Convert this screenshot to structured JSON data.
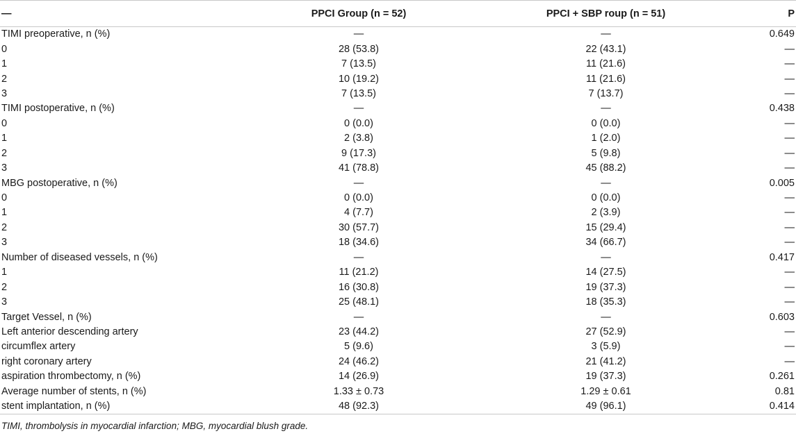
{
  "table": {
    "headers": [
      "—",
      "PPCI Group (n = 52)",
      "PPCI + SBP roup (n = 51)",
      "P"
    ],
    "rows": [
      [
        "TIMI preoperative, n (%)",
        "—",
        "—",
        "0.649"
      ],
      [
        "0",
        "28 (53.8)",
        "22 (43.1)",
        "—"
      ],
      [
        "1",
        "7 (13.5)",
        "11 (21.6)",
        "—"
      ],
      [
        "2",
        "10 (19.2)",
        "11 (21.6)",
        "—"
      ],
      [
        "3",
        "7 (13.5)",
        "7 (13.7)",
        "—"
      ],
      [
        "TIMI postoperative, n (%)",
        "—",
        "—",
        "0.438"
      ],
      [
        "0",
        "0 (0.0)",
        "0 (0.0)",
        "—"
      ],
      [
        "1",
        "2 (3.8)",
        "1 (2.0)",
        "—"
      ],
      [
        "2",
        "9 (17.3)",
        "5 (9.8)",
        "—"
      ],
      [
        "3",
        "41 (78.8)",
        "45 (88.2)",
        "—"
      ],
      [
        "MBG postoperative, n (%)",
        "—",
        "—",
        "0.005"
      ],
      [
        "0",
        "0 (0.0)",
        "0 (0.0)",
        "—"
      ],
      [
        "1",
        "4 (7.7)",
        "2 (3.9)",
        "—"
      ],
      [
        "2",
        "30 (57.7)",
        "15 (29.4)",
        "—"
      ],
      [
        "3",
        "18 (34.6)",
        "34 (66.7)",
        "—"
      ],
      [
        "Number of diseased vessels, n (%)",
        "—",
        "—",
        "0.417"
      ],
      [
        "1",
        "11 (21.2)",
        "14 (27.5)",
        "—"
      ],
      [
        "2",
        "16 (30.8)",
        "19 (37.3)",
        "—"
      ],
      [
        "3",
        "25 (48.1)",
        "18 (35.3)",
        "—"
      ],
      [
        "Target Vessel, n (%)",
        "—",
        "—",
        "0.603"
      ],
      [
        "Left anterior descending artery",
        "23 (44.2)",
        "27 (52.9)",
        "—"
      ],
      [
        "circumflex artery",
        "5 (9.6)",
        "3 (5.9)",
        "—"
      ],
      [
        "right coronary artery",
        "24 (46.2)",
        "21 (41.2)",
        "—"
      ],
      [
        "aspiration thrombectomy, n (%)",
        "14 (26.9)",
        "19 (37.3)",
        "0.261"
      ],
      [
        "Average number of stents, n (%)",
        "1.33 ± 0.73",
        "1.29 ± 0.61",
        "0.81"
      ],
      [
        "stent implantation, n (%)",
        "48 (92.3)",
        "49 (96.1)",
        "0.414"
      ]
    ]
  },
  "footnote": "TIMI, thrombolysis in myocardial infarction; MBG, myocardial blush grade."
}
